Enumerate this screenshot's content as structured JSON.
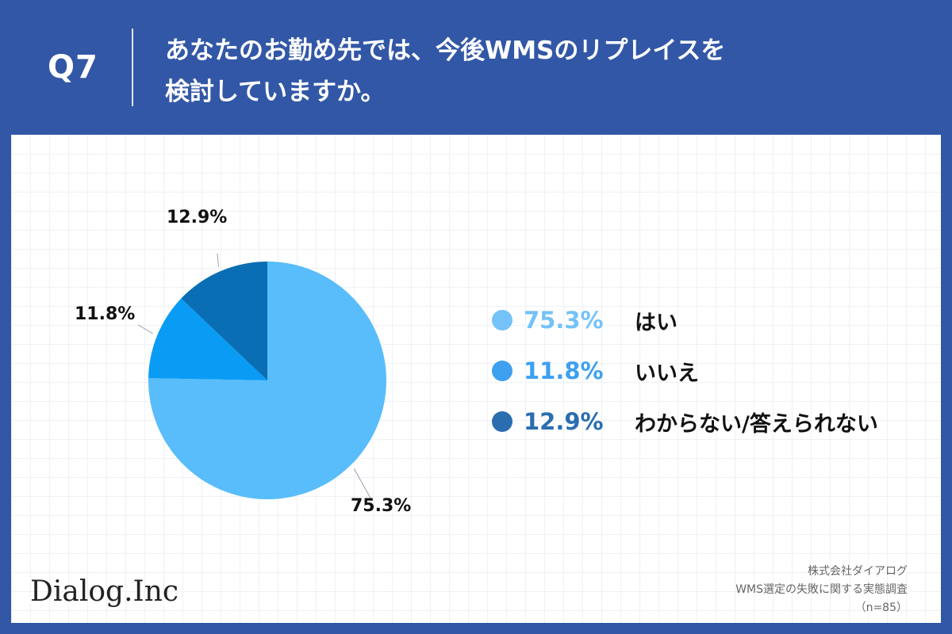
{
  "header": {
    "question": "Q7",
    "title_line1": "あなたのお勤め先では、今後WMSのリプレイスを",
    "title_line2": "検討していますか。"
  },
  "chart_data": {
    "type": "pie",
    "categories": [
      "はい",
      "いいえ",
      "わからない/答えられない"
    ],
    "values": [
      75.3,
      11.8,
      12.9
    ],
    "value_labels": [
      "75.3%",
      "11.8%",
      "12.9%"
    ],
    "colors": [
      "#58bdfa",
      "#0a9cf5",
      "#0a6eb4"
    ],
    "legend_colors": [
      "#74c2f8",
      "#3ea0f0",
      "#2a6eb0"
    ],
    "start_angle_deg": 0,
    "direction": "clockwise",
    "legend_placement": "right"
  },
  "footer": {
    "logo": "Dialog.Inc",
    "company": "株式会社ダイアログ",
    "survey": "WMS選定の失敗に関する実態調査",
    "sample": "（n=85）"
  }
}
